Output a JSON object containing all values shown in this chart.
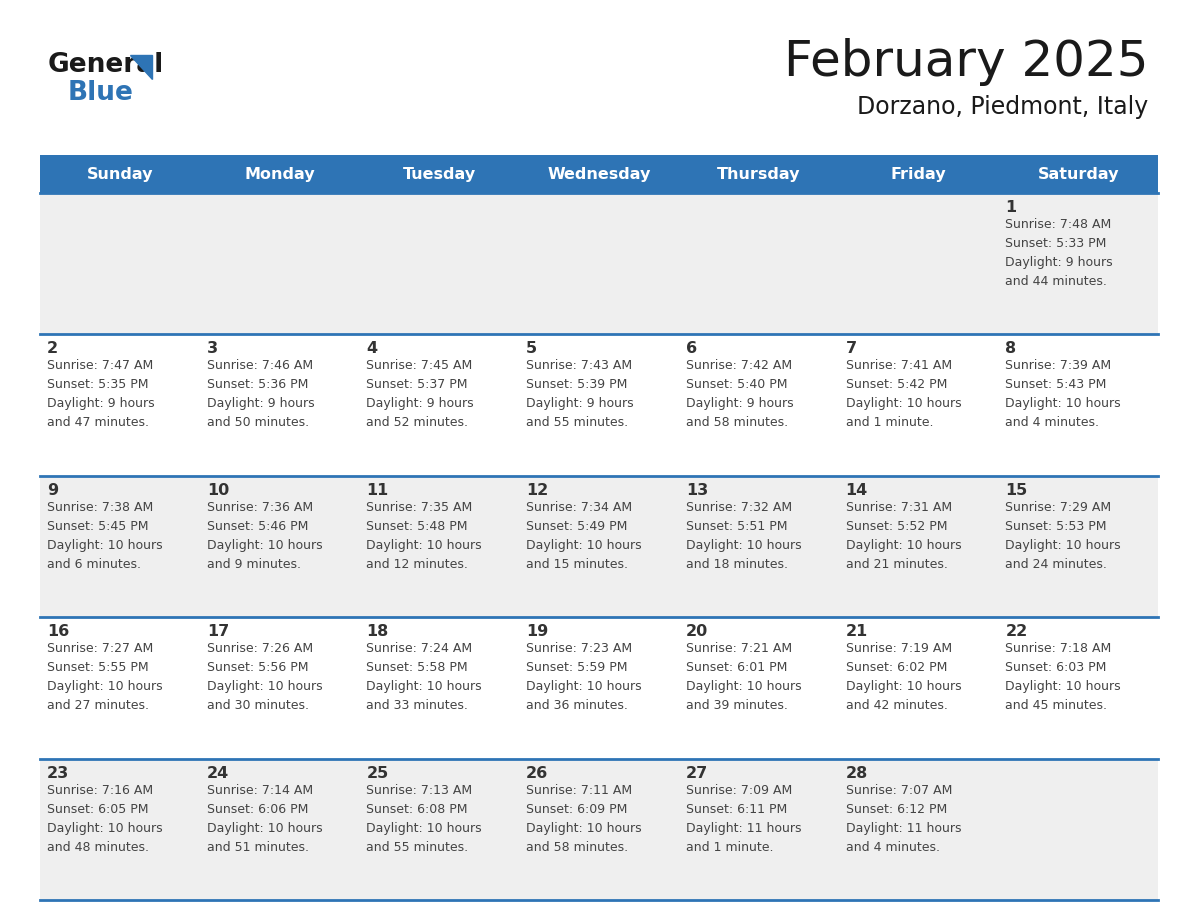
{
  "title": "February 2025",
  "subtitle": "Dorzano, Piedmont, Italy",
  "header_bg": "#2E74B5",
  "header_text_color": "#FFFFFF",
  "day_names": [
    "Sunday",
    "Monday",
    "Tuesday",
    "Wednesday",
    "Thursday",
    "Friday",
    "Saturday"
  ],
  "row_bg": [
    "#EFEFEF",
    "#FFFFFF",
    "#EFEFEF",
    "#FFFFFF",
    "#EFEFEF"
  ],
  "separator_color": "#2E74B5",
  "number_color": "#333333",
  "text_color": "#444444",
  "logo_general_color": "#1a1a1a",
  "logo_blue_color": "#2E74B5",
  "logo_triangle_color": "#2E74B5",
  "weeks": [
    [
      {
        "day": "",
        "info": ""
      },
      {
        "day": "",
        "info": ""
      },
      {
        "day": "",
        "info": ""
      },
      {
        "day": "",
        "info": ""
      },
      {
        "day": "",
        "info": ""
      },
      {
        "day": "",
        "info": ""
      },
      {
        "day": "1",
        "info": "Sunrise: 7:48 AM\nSunset: 5:33 PM\nDaylight: 9 hours\nand 44 minutes."
      }
    ],
    [
      {
        "day": "2",
        "info": "Sunrise: 7:47 AM\nSunset: 5:35 PM\nDaylight: 9 hours\nand 47 minutes."
      },
      {
        "day": "3",
        "info": "Sunrise: 7:46 AM\nSunset: 5:36 PM\nDaylight: 9 hours\nand 50 minutes."
      },
      {
        "day": "4",
        "info": "Sunrise: 7:45 AM\nSunset: 5:37 PM\nDaylight: 9 hours\nand 52 minutes."
      },
      {
        "day": "5",
        "info": "Sunrise: 7:43 AM\nSunset: 5:39 PM\nDaylight: 9 hours\nand 55 minutes."
      },
      {
        "day": "6",
        "info": "Sunrise: 7:42 AM\nSunset: 5:40 PM\nDaylight: 9 hours\nand 58 minutes."
      },
      {
        "day": "7",
        "info": "Sunrise: 7:41 AM\nSunset: 5:42 PM\nDaylight: 10 hours\nand 1 minute."
      },
      {
        "day": "8",
        "info": "Sunrise: 7:39 AM\nSunset: 5:43 PM\nDaylight: 10 hours\nand 4 minutes."
      }
    ],
    [
      {
        "day": "9",
        "info": "Sunrise: 7:38 AM\nSunset: 5:45 PM\nDaylight: 10 hours\nand 6 minutes."
      },
      {
        "day": "10",
        "info": "Sunrise: 7:36 AM\nSunset: 5:46 PM\nDaylight: 10 hours\nand 9 minutes."
      },
      {
        "day": "11",
        "info": "Sunrise: 7:35 AM\nSunset: 5:48 PM\nDaylight: 10 hours\nand 12 minutes."
      },
      {
        "day": "12",
        "info": "Sunrise: 7:34 AM\nSunset: 5:49 PM\nDaylight: 10 hours\nand 15 minutes."
      },
      {
        "day": "13",
        "info": "Sunrise: 7:32 AM\nSunset: 5:51 PM\nDaylight: 10 hours\nand 18 minutes."
      },
      {
        "day": "14",
        "info": "Sunrise: 7:31 AM\nSunset: 5:52 PM\nDaylight: 10 hours\nand 21 minutes."
      },
      {
        "day": "15",
        "info": "Sunrise: 7:29 AM\nSunset: 5:53 PM\nDaylight: 10 hours\nand 24 minutes."
      }
    ],
    [
      {
        "day": "16",
        "info": "Sunrise: 7:27 AM\nSunset: 5:55 PM\nDaylight: 10 hours\nand 27 minutes."
      },
      {
        "day": "17",
        "info": "Sunrise: 7:26 AM\nSunset: 5:56 PM\nDaylight: 10 hours\nand 30 minutes."
      },
      {
        "day": "18",
        "info": "Sunrise: 7:24 AM\nSunset: 5:58 PM\nDaylight: 10 hours\nand 33 minutes."
      },
      {
        "day": "19",
        "info": "Sunrise: 7:23 AM\nSunset: 5:59 PM\nDaylight: 10 hours\nand 36 minutes."
      },
      {
        "day": "20",
        "info": "Sunrise: 7:21 AM\nSunset: 6:01 PM\nDaylight: 10 hours\nand 39 minutes."
      },
      {
        "day": "21",
        "info": "Sunrise: 7:19 AM\nSunset: 6:02 PM\nDaylight: 10 hours\nand 42 minutes."
      },
      {
        "day": "22",
        "info": "Sunrise: 7:18 AM\nSunset: 6:03 PM\nDaylight: 10 hours\nand 45 minutes."
      }
    ],
    [
      {
        "day": "23",
        "info": "Sunrise: 7:16 AM\nSunset: 6:05 PM\nDaylight: 10 hours\nand 48 minutes."
      },
      {
        "day": "24",
        "info": "Sunrise: 7:14 AM\nSunset: 6:06 PM\nDaylight: 10 hours\nand 51 minutes."
      },
      {
        "day": "25",
        "info": "Sunrise: 7:13 AM\nSunset: 6:08 PM\nDaylight: 10 hours\nand 55 minutes."
      },
      {
        "day": "26",
        "info": "Sunrise: 7:11 AM\nSunset: 6:09 PM\nDaylight: 10 hours\nand 58 minutes."
      },
      {
        "day": "27",
        "info": "Sunrise: 7:09 AM\nSunset: 6:11 PM\nDaylight: 11 hours\nand 1 minute."
      },
      {
        "day": "28",
        "info": "Sunrise: 7:07 AM\nSunset: 6:12 PM\nDaylight: 11 hours\nand 4 minutes."
      },
      {
        "day": "",
        "info": ""
      }
    ]
  ]
}
